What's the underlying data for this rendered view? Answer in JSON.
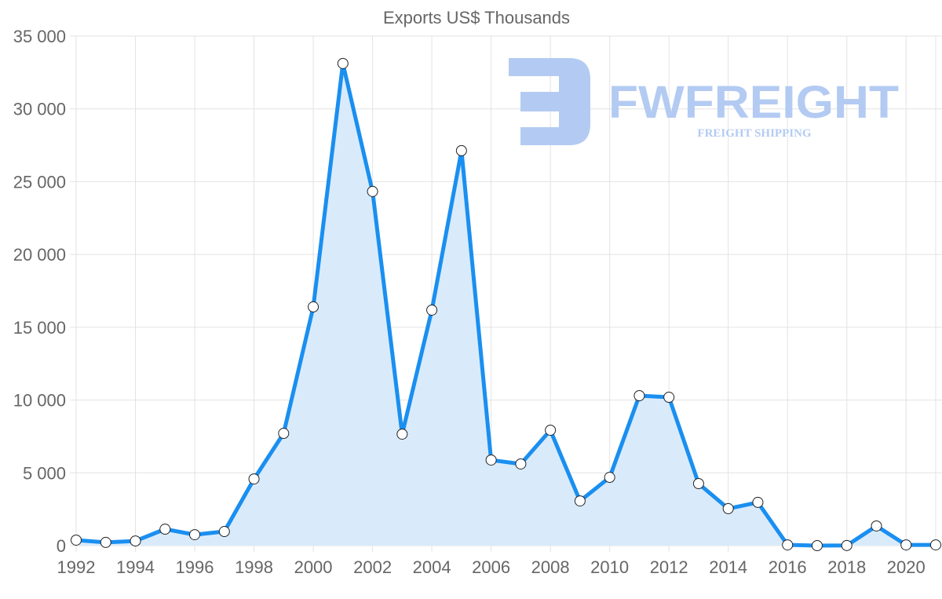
{
  "chart_data": {
    "type": "line",
    "title": "Exports US$ Thousands",
    "xlabel": "",
    "ylabel": "",
    "x": [
      1992,
      1993,
      1994,
      1995,
      1996,
      1997,
      1998,
      1999,
      2000,
      2001,
      2002,
      2003,
      2004,
      2005,
      2006,
      2007,
      2008,
      2009,
      2010,
      2011,
      2012,
      2013,
      2014,
      2015,
      2016,
      2017,
      2018,
      2019,
      2020,
      2021
    ],
    "series": [
      {
        "name": "Exports US$ Thousands",
        "values": [
          380,
          220,
          320,
          1130,
          750,
          970,
          4580,
          7710,
          16400,
          33120,
          24330,
          7660,
          16180,
          27130,
          5880,
          5610,
          7930,
          3070,
          4690,
          10300,
          10190,
          4260,
          2540,
          2970,
          50,
          0,
          10,
          1350,
          50,
          50
        ],
        "color": "#1a8ff0",
        "fill": "#d9ebfb"
      }
    ],
    "ylim": [
      0,
      35000
    ],
    "yticks": [
      "0",
      "5 000",
      "10 000",
      "15 000",
      "20 000",
      "25 000",
      "30 000",
      "35 000"
    ],
    "xticks": [
      "1992",
      "1994",
      "1996",
      "1998",
      "2000",
      "2002",
      "2004",
      "2006",
      "2008",
      "2010",
      "2012",
      "2014",
      "2016",
      "2018",
      "2020"
    ],
    "grid": true,
    "legend": "none",
    "watermark": {
      "brand": "FWFREIGHT",
      "tagline": "FREIGHT SHIPPING",
      "color": "#b3cbf2"
    }
  }
}
